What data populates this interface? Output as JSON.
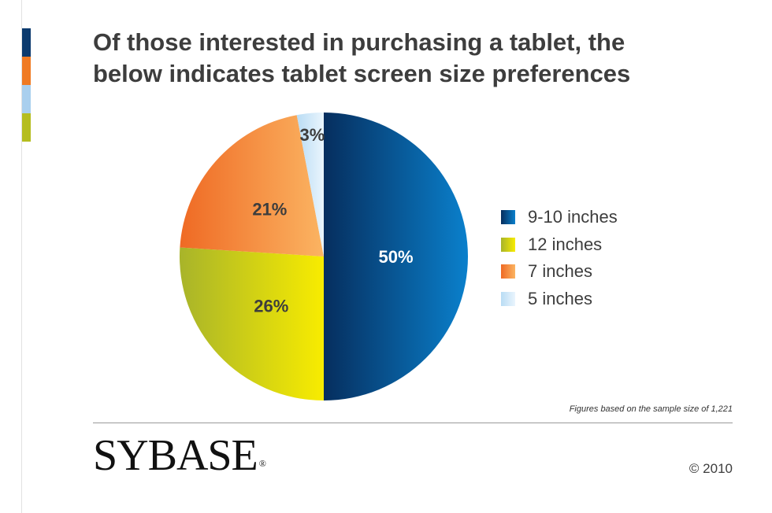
{
  "title": {
    "line1": "Of those interested in purchasing a tablet, the",
    "line2": "below indicates tablet screen size preferences"
  },
  "stripe_colors": [
    "#0b3a6e",
    "#f07a22",
    "#a9cfee",
    "#b5bd1f"
  ],
  "chart_data": {
    "type": "pie",
    "title": "Of those interested in purchasing a tablet, the below indicates tablet screen size preferences",
    "legend_position": "right",
    "slices": [
      {
        "label": "9-10 inches",
        "value": 50,
        "display": "50%",
        "color_light": "#0a80cc",
        "color_dark": "#062e5e",
        "label_color": "#ffffff"
      },
      {
        "label": "12 inches",
        "value": 26,
        "display": "26%",
        "color_light": "#f8ec00",
        "color_dark": "#a8b42a",
        "label_color": "#3d3d3d"
      },
      {
        "label": "7 inches",
        "value": 21,
        "display": "21%",
        "color_light": "#fbb462",
        "color_dark": "#ef6a24",
        "label_color": "#3d3d3d"
      },
      {
        "label": "5 inches",
        "value": 3,
        "display": "3%",
        "color_light": "#eaf5fd",
        "color_dark": "#b9dcf4",
        "label_color": "#3d3d3d"
      }
    ]
  },
  "footnote": "Figures based on the sample size of 1,221",
  "logo": {
    "text": "SYBASE",
    "mark": "®"
  },
  "copyright": "© 2010"
}
